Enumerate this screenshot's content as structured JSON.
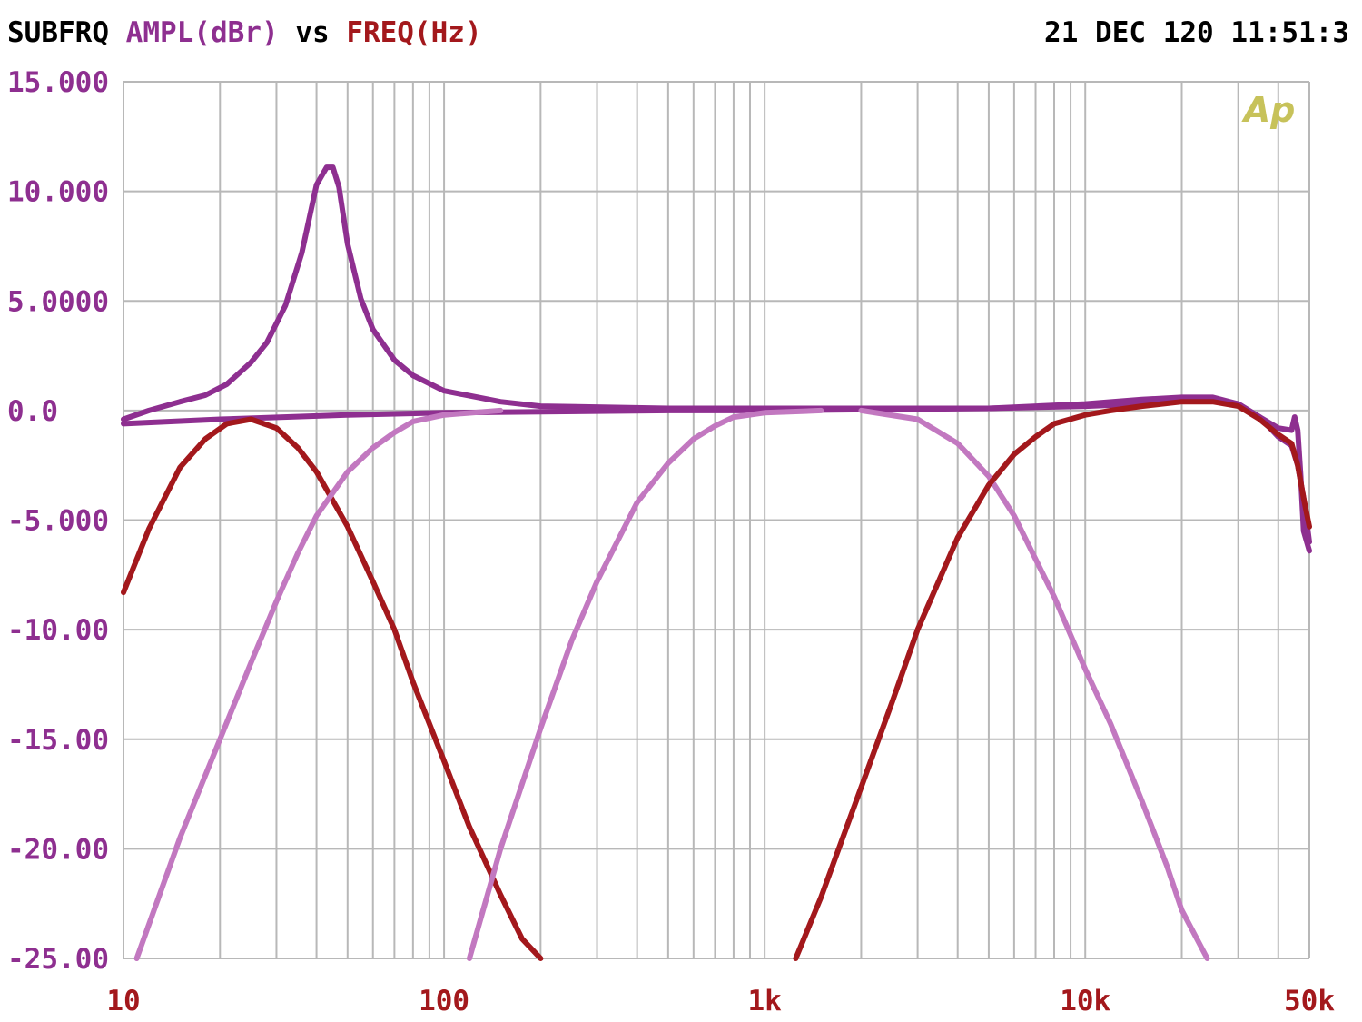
{
  "header": {
    "source": "SUBFRQ",
    "y_quantity": "AMPL(dBr)",
    "vs": "vs",
    "x_quantity": "FREQ(Hz)",
    "timestamp": "21 DEC 120 11:51:3"
  },
  "logo": "Ap",
  "colors": {
    "background": "#ffffff",
    "grid": "#b8b8b8",
    "y_tick_labels": "#8e2f90",
    "x_tick_labels": "#a3181c",
    "logo": "#c7c25a"
  },
  "chart_data": {
    "type": "line",
    "title": "",
    "xlabel": "FREQ(Hz)",
    "ylabel": "AMPL(dBr)",
    "x_scale": "log",
    "xlim": [
      10,
      50000
    ],
    "ylim": [
      -25,
      15
    ],
    "grid": true,
    "legend": "none",
    "x_tick_values": [
      10,
      100,
      1000,
      10000,
      50000
    ],
    "x_tick_labels": [
      "10",
      "100",
      "1k",
      "10k",
      "50k"
    ],
    "y_tick_values": [
      15,
      10,
      5,
      0,
      -5,
      -10,
      -15,
      -20,
      -25
    ],
    "y_tick_labels": [
      "15.000",
      "10.000",
      "5.0000",
      "0.0",
      "-5.000",
      "-10.00",
      "-15.00",
      "-20.00",
      "-25.00"
    ],
    "series": [
      {
        "color": "#8e2f90",
        "x": [
          10,
          12,
          15,
          18,
          21,
          25,
          28,
          32,
          36,
          40,
          43,
          45,
          47,
          50,
          55,
          60,
          70,
          80,
          100,
          150,
          200,
          500,
          1000,
          5000,
          10000,
          15000,
          20000,
          25000,
          30000,
          35000,
          40000,
          44000,
          45000,
          46000,
          47000,
          48000,
          50000
        ],
        "y": [
          -0.4,
          0,
          0.4,
          0.7,
          1.2,
          2.2,
          3.1,
          4.8,
          7.2,
          10.3,
          11.1,
          11.1,
          10.2,
          7.6,
          5.1,
          3.7,
          2.3,
          1.6,
          0.9,
          0.4,
          0.2,
          0.1,
          0.1,
          0.1,
          0.3,
          0.5,
          0.6,
          0.6,
          0.3,
          -0.3,
          -0.8,
          -0.9,
          -0.3,
          -0.9,
          -3.0,
          -5.5,
          -6.4
        ]
      },
      {
        "color": "#8e2f90",
        "x": [
          10,
          20,
          50,
          100,
          500,
          1000,
          5000,
          10000,
          15000,
          20000,
          25000,
          30000,
          35000,
          40000,
          44000,
          46000,
          48000,
          50000
        ],
        "y": [
          -0.6,
          -0.4,
          -0.2,
          -0.1,
          0,
          0,
          0.1,
          0.2,
          0.3,
          0.5,
          0.5,
          0.3,
          -0.3,
          -1.2,
          -1.6,
          -2.5,
          -4.0,
          -6.0
        ]
      },
      {
        "color": "#a3181c",
        "x": [
          10,
          12,
          15,
          18,
          21,
          25,
          30,
          35,
          40,
          50,
          60,
          70,
          80,
          100,
          120,
          150,
          175,
          200
        ],
        "y": [
          -8.3,
          -5.4,
          -2.6,
          -1.3,
          -0.6,
          -0.4,
          -0.8,
          -1.7,
          -2.8,
          -5.3,
          -7.8,
          -10.0,
          -12.4,
          -16.0,
          -19.0,
          -22.1,
          -24.1,
          -25.0
        ]
      },
      {
        "color": "#c278c0",
        "x": [
          11,
          15,
          20,
          25,
          30,
          35,
          40,
          50,
          60,
          70,
          80,
          100,
          150
        ],
        "y": [
          -25.0,
          -19.5,
          -15.0,
          -11.5,
          -8.7,
          -6.5,
          -4.8,
          -2.8,
          -1.7,
          -1.0,
          -0.5,
          -0.2,
          0
        ]
      },
      {
        "color": "#c278c0",
        "x": [
          120,
          150,
          200,
          250,
          300,
          400,
          500,
          600,
          700,
          800,
          1000,
          1500
        ],
        "y": [
          -25.0,
          -20.0,
          -14.5,
          -10.5,
          -7.8,
          -4.2,
          -2.4,
          -1.3,
          -0.7,
          -0.3,
          -0.1,
          0
        ]
      },
      {
        "color": "#c278c0",
        "x": [
          2000,
          3000,
          4000,
          5000,
          6000,
          8000,
          10000,
          12000,
          15000,
          18000,
          20000,
          24000
        ],
        "y": [
          0,
          -0.4,
          -1.5,
          -3.0,
          -4.8,
          -8.5,
          -11.8,
          -14.3,
          -17.8,
          -20.8,
          -22.8,
          -25.0
        ]
      },
      {
        "color": "#a3181c",
        "x": [
          1250,
          1500,
          2000,
          2500,
          3000,
          4000,
          5000,
          6000,
          7000,
          8000,
          10000,
          12000,
          15000,
          20000,
          25000,
          30000,
          35000,
          40000,
          44000,
          46000,
          48000,
          50000
        ],
        "y": [
          -25.0,
          -22.2,
          -17.2,
          -13.3,
          -10.0,
          -5.8,
          -3.4,
          -2.0,
          -1.2,
          -0.6,
          -0.2,
          0,
          0.2,
          0.4,
          0.4,
          0.2,
          -0.4,
          -1.1,
          -1.5,
          -2.5,
          -4.0,
          -5.3
        ]
      }
    ]
  }
}
